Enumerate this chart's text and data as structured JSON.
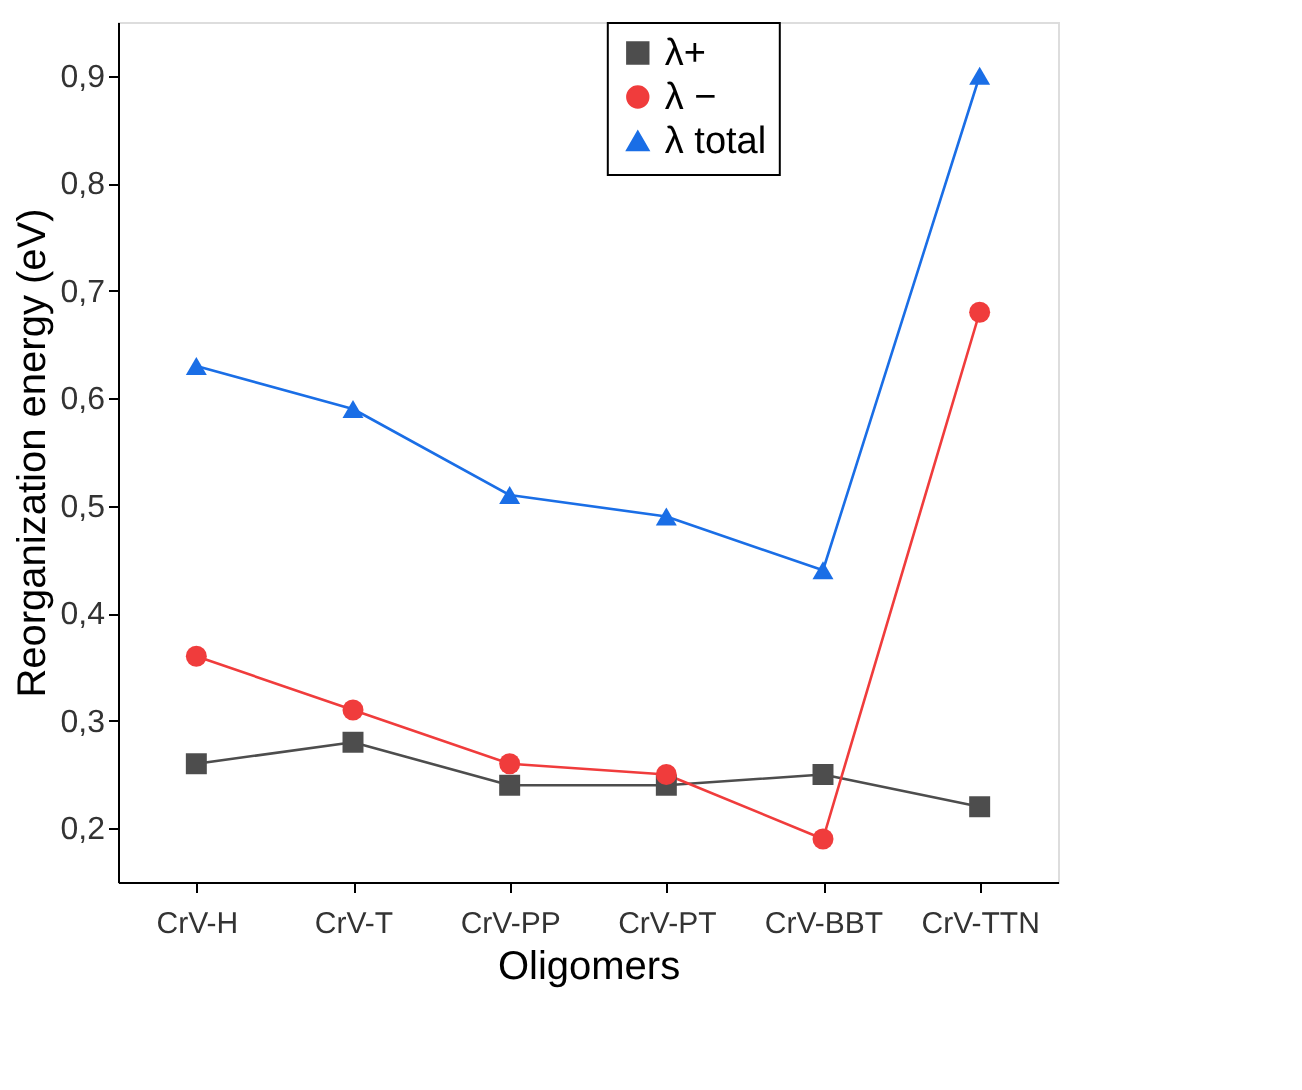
{
  "chart_data": {
    "type": "line",
    "xlabel": "Oligomers",
    "ylabel": "Reorganization energy (eV)",
    "categories": [
      "CrV-H",
      "CrV-T",
      "CrV-PP",
      "CrV-PT",
      "CrV-BBT",
      "CrV-TTN"
    ],
    "series": [
      {
        "name": "λ+",
        "color": "#4d4d4d",
        "marker": "square",
        "values": [
          0.26,
          0.28,
          0.24,
          0.24,
          0.25,
          0.22
        ]
      },
      {
        "name": "λ −",
        "color": "#f03c3c",
        "marker": "circle",
        "values": [
          0.36,
          0.31,
          0.26,
          0.25,
          0.19,
          0.68
        ]
      },
      {
        "name": "λ total",
        "color": "#1a6ee6",
        "marker": "triangle",
        "values": [
          0.63,
          0.59,
          0.51,
          0.49,
          0.44,
          0.9
        ]
      }
    ],
    "ylim": [
      0.15,
      0.95
    ],
    "yticks": [
      {
        "value": 0.2,
        "label": "0,2"
      },
      {
        "value": 0.3,
        "label": "0,3"
      },
      {
        "value": 0.4,
        "label": "0,4"
      },
      {
        "value": 0.5,
        "label": "0,5"
      },
      {
        "value": 0.6,
        "label": "0,6"
      },
      {
        "value": 0.7,
        "label": "0,7"
      },
      {
        "value": 0.8,
        "label": "0,8"
      },
      {
        "value": 0.9,
        "label": "0,9"
      }
    ],
    "grid": false,
    "legend": "top right",
    "line_style": "solid"
  }
}
